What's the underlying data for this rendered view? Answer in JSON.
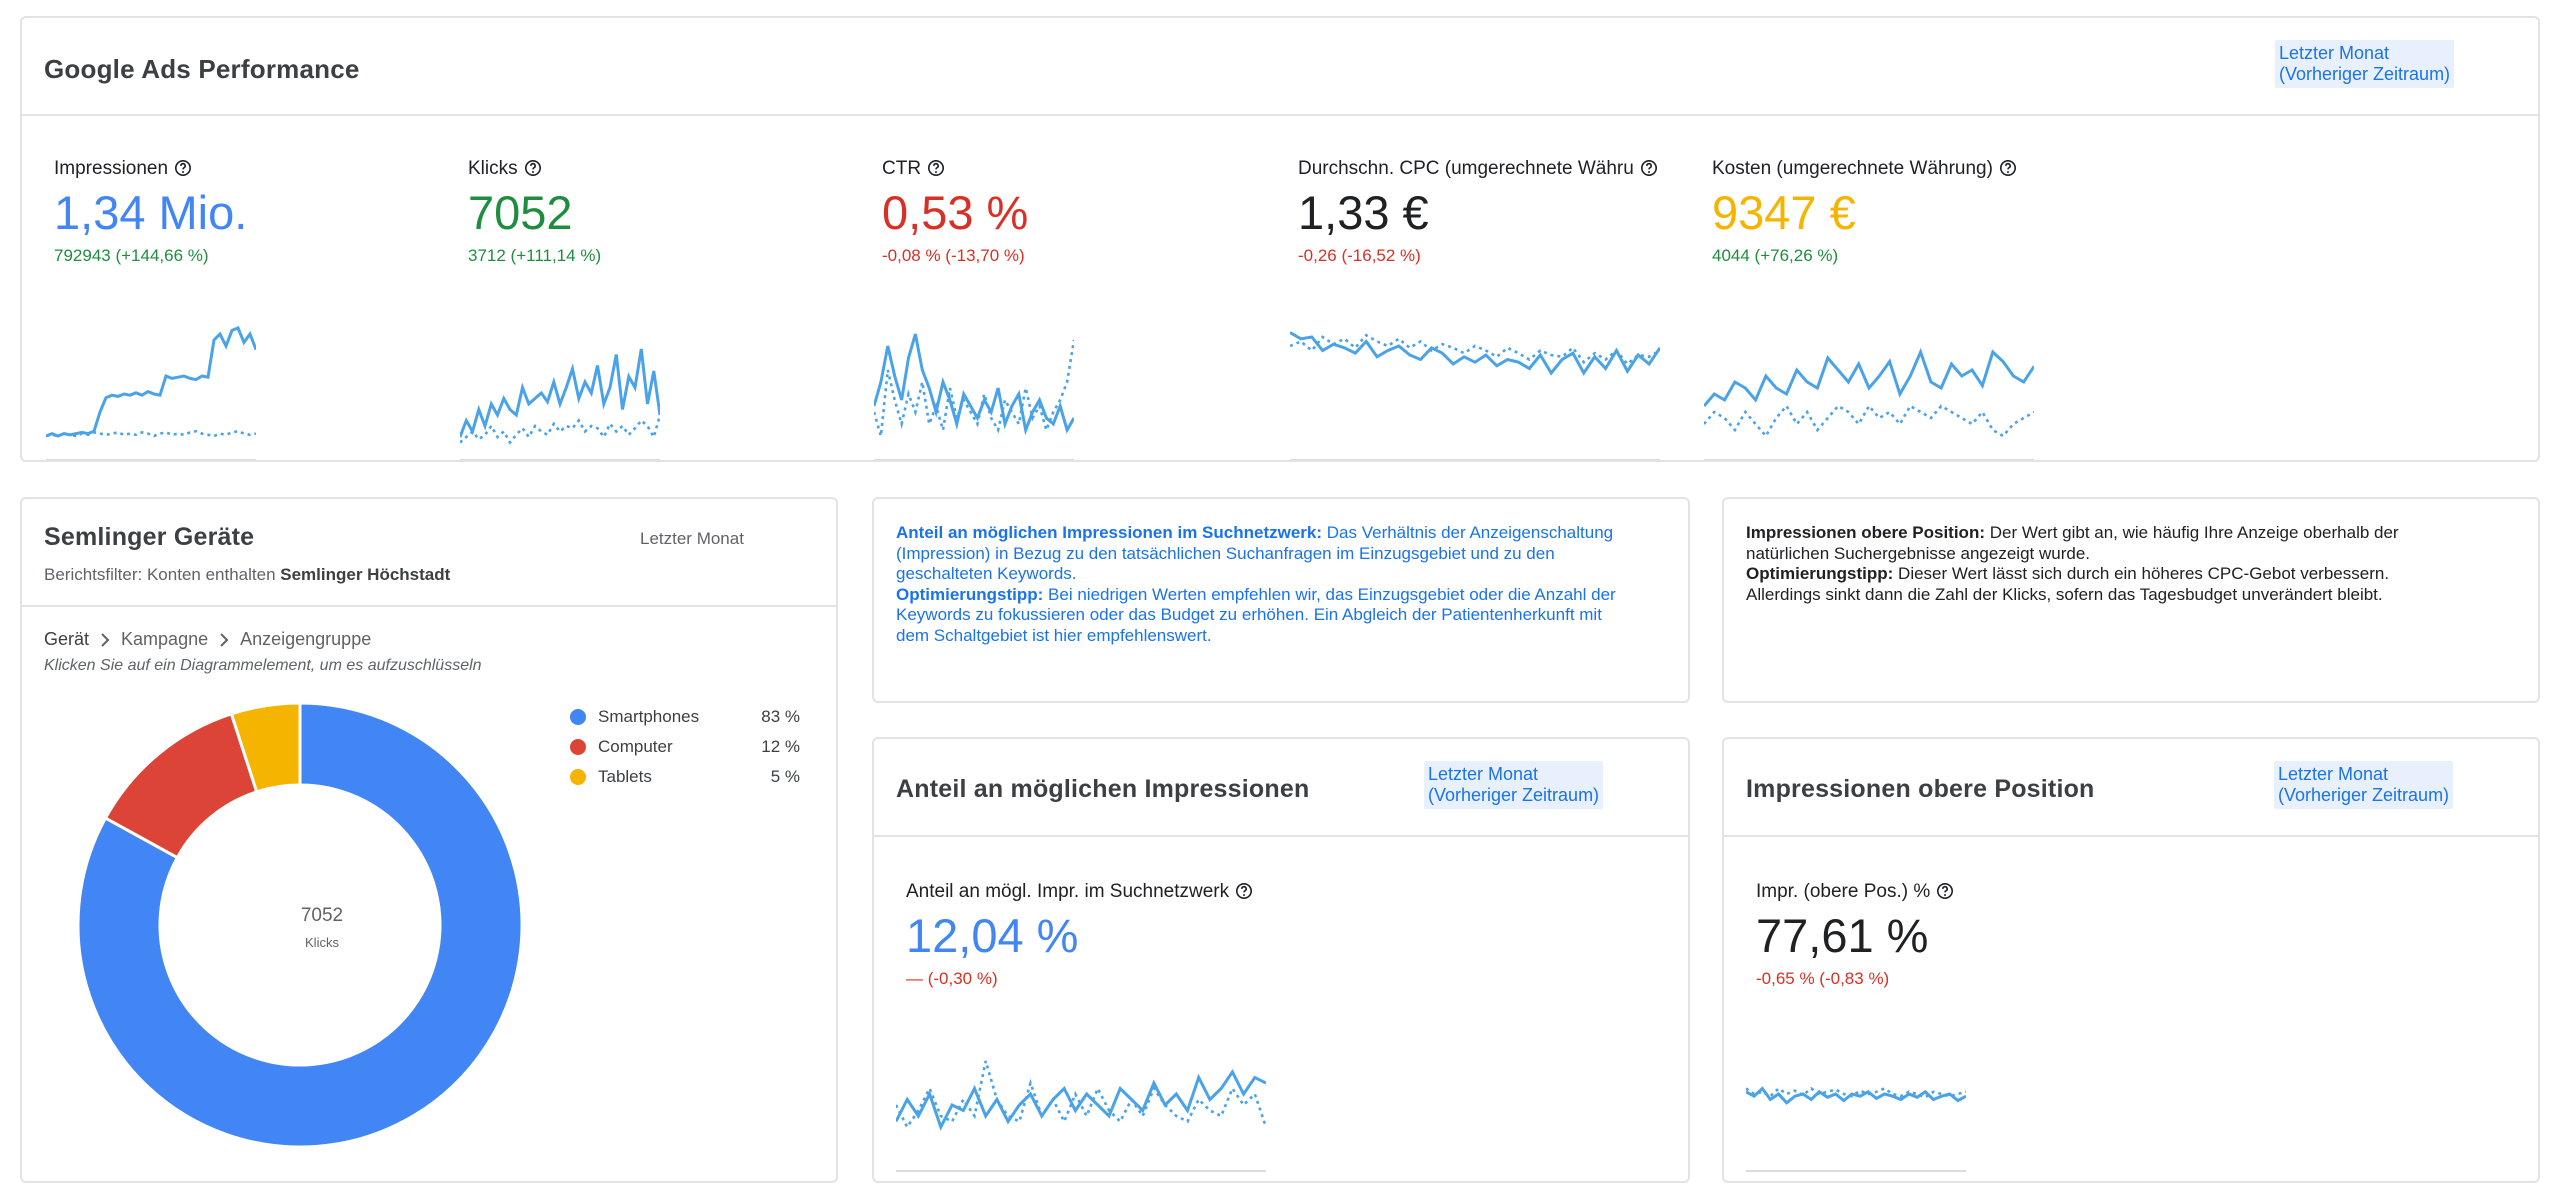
{
  "colors": {
    "blue": "#4285f4",
    "green": "#1e8e3e",
    "red": "#d93025",
    "yellow": "#f4b400",
    "spark": "#4aa3e8",
    "donut_red": "#db4437"
  },
  "overview": {
    "title": "Google Ads Performance",
    "period_line1": "Letzter Monat",
    "period_line2": "(Vorheriger Zeitraum)",
    "help_icon": "question-circle-icon",
    "kpis": [
      {
        "label": "Impressionen",
        "value": "1,34 Mio.",
        "delta": "792943 (+144,66 %)",
        "value_color": "#4285f4",
        "delta_type": "pos"
      },
      {
        "label": "Klicks",
        "value": "7052",
        "delta": "3712 (+111,14 %)",
        "value_color": "#1e8e3e",
        "delta_type": "pos"
      },
      {
        "label": "CTR",
        "value": "0,53 %",
        "delta": "-0,08 % (-13,70 %)",
        "value_color": "#d93025",
        "delta_type": "neg"
      },
      {
        "label": "Durchschn. CPC (umgerechnete Währu",
        "value": "1,33 €",
        "delta": "-0,26  (-16,52 %)",
        "value_color": "#202124",
        "delta_type": "neg"
      },
      {
        "label": "Kosten (umgerechnete Währung)",
        "value": "9347 €",
        "delta": "4044  (+76,26 %)",
        "value_color": "#f4b400",
        "delta_type": "pos"
      }
    ]
  },
  "devices": {
    "title": "Semlinger Geräte",
    "period": "Letzter Monat",
    "filter_prefix": "Berichtsfilter: Konten enthalten ",
    "filter_value": "Semlinger Höchstadt",
    "breadcrumb": [
      "Gerät",
      "Kampagne",
      "Anzeigengruppe"
    ],
    "hint": "Klicken Sie auf ein Diagrammelement, um es aufzuschlüsseln",
    "center_value": "7052",
    "center_label": "Klicks"
  },
  "chart_data": {
    "type": "pie",
    "categories": [
      "Smartphones",
      "Computer",
      "Tablets"
    ],
    "values": [
      83,
      12,
      5
    ],
    "labels": [
      "83 %",
      "12 %",
      "5 %"
    ],
    "colors": [
      "#4285f4",
      "#db4437",
      "#f4b400"
    ],
    "legend": "top-right"
  },
  "info_share": {
    "term": "Anteil an möglichen Impressionen im Suchnetzwerk:",
    "text": " Das Verhältnis der Anzeigenschaltung (Impression) in Bezug zu den tatsächlichen Suchanfragen im Einzugsgebiet und zu den geschalteten Keywords.",
    "tip_term": "Optimierungstipp:",
    "tip_text": " Bei niedrigen Werten empfehlen wir, das Einzugsgebiet oder die Anzahl der Keywords zu fokussieren oder das Budget zu erhöhen. Ein Abgleich der Patientenherkunft mit dem Schaltgebiet ist hier empfehlenswert."
  },
  "info_top": {
    "term": "Impressionen obere Position:",
    "text": " Der Wert gibt an, wie häufig Ihre Anzeige oberhalb der natürlichen Suchergebnisse angezeigt wurde.",
    "tip_term": "Optimierungstipp:",
    "tip_text": " Dieser Wert lässt sich durch ein höheres CPC-Gebot verbessern. Allerdings sinkt dann die Zahl der Klicks, sofern das Tagesbudget unverändert bleibt."
  },
  "share_card": {
    "title": "Anteil an möglichen Impressionen",
    "period_line1": "Letzter Monat",
    "period_line2": "(Vorheriger Zeitraum)",
    "kpi_label": "Anteil an mögl. Impr. im Suchnetzwerk",
    "kpi_value": "12,04 %",
    "kpi_delta": "— (-0,30 %)"
  },
  "top_card": {
    "title": "Impressionen obere Position",
    "period_line1": "Letzter Monat",
    "period_line2": "(Vorheriger Zeitraum)",
    "kpi_label": "Impr. (obere Pos.) %",
    "kpi_value": "77,61 %",
    "kpi_delta": "-0,65 % (-0,83 %)"
  }
}
